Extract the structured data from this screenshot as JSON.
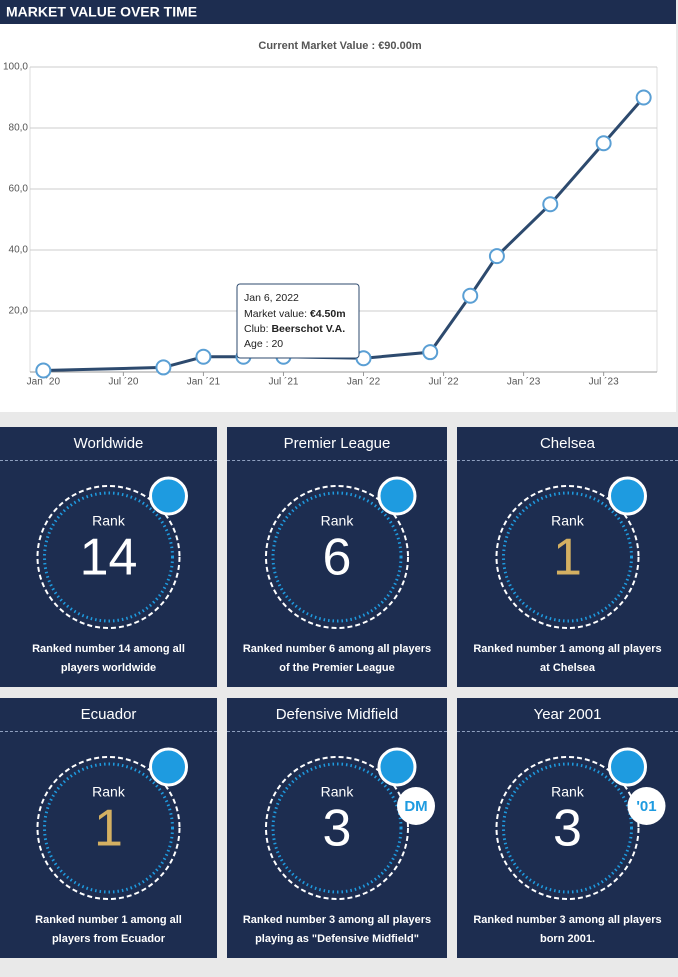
{
  "header": {
    "title": "MARKET VALUE OVER TIME"
  },
  "chart_data": {
    "type": "line",
    "title": "Current Market Value : €90.00m",
    "x": [
      "2020-01",
      "2020-10",
      "2021-01",
      "2021-04",
      "2021-07",
      "2022-01",
      "2022-06",
      "2022-09",
      "2022-11",
      "2023-03",
      "2023-07",
      "2023-10"
    ],
    "series": [
      {
        "color": "#2d4a6e",
        "marker_color": "#5a9fd4",
        "values": [
          0.5,
          1.5,
          5,
          5,
          5,
          4.5,
          6.5,
          25,
          38,
          55,
          75,
          90
        ]
      }
    ],
    "xlim": [
      "2019-12",
      "2023-11"
    ],
    "xticks": [
      {
        "value": "2020-01",
        "label": "Jan ´20"
      },
      {
        "value": "2020-07",
        "label": "Jul ´20"
      },
      {
        "value": "2021-01",
        "label": "Jan ´21"
      },
      {
        "value": "2021-07",
        "label": "Jul ´21"
      },
      {
        "value": "2022-01",
        "label": "Jan ´22"
      },
      {
        "value": "2022-07",
        "label": "Jul ´22"
      },
      {
        "value": "2023-01",
        "label": "Jan ´23"
      },
      {
        "value": "2023-07",
        "label": "Jul ´23"
      }
    ],
    "ylim": [
      0,
      100
    ],
    "yticks": [
      {
        "value": 20,
        "label": "20,0"
      },
      {
        "value": 40,
        "label": "40,0"
      },
      {
        "value": 60,
        "label": "60,0"
      },
      {
        "value": 80,
        "label": "80,0"
      },
      {
        "value": 100,
        "label": "100,0"
      }
    ],
    "grid": true,
    "tooltip": {
      "point": 5,
      "date": "Jan 6, 2022",
      "lines": [
        {
          "label": "Market value: ",
          "value": "€4.50m"
        },
        {
          "label": "Club: ",
          "value": "Beerschot V.A."
        },
        {
          "label": "Age : ",
          "value": "20"
        }
      ]
    }
  },
  "cards": [
    {
      "title": "Worldwide",
      "rank_label": "Rank",
      "rank": "14",
      "color": "#ffffff",
      "description": "Ranked number 14 among all players worldwide"
    },
    {
      "title": "Premier League",
      "rank_label": "Rank",
      "rank": "6",
      "color": "#ffffff",
      "description": "Ranked number 6 among all players of the Premier League"
    },
    {
      "title": "Chelsea",
      "rank_label": "Rank",
      "rank": "1",
      "color": "#d4b062",
      "description": "Ranked number 1 among all players at Chelsea"
    },
    {
      "title": "Ecuador",
      "rank_label": "Rank",
      "rank": "1",
      "color": "#d4b062",
      "description": "Ranked number 1 among all players from Ecuador"
    },
    {
      "title": "Defensive Midfield",
      "rank_label": "Rank",
      "rank": "3",
      "color": "#ffffff",
      "badge": "DM",
      "description": "Ranked number 3 among all players playing as \"Defensive Midfield\""
    },
    {
      "title": "Year 2001",
      "rank_label": "Rank",
      "rank": "3",
      "color": "#ffffff",
      "badge": "'01",
      "description": "Ranked number 3 among all players born 2001."
    }
  ]
}
